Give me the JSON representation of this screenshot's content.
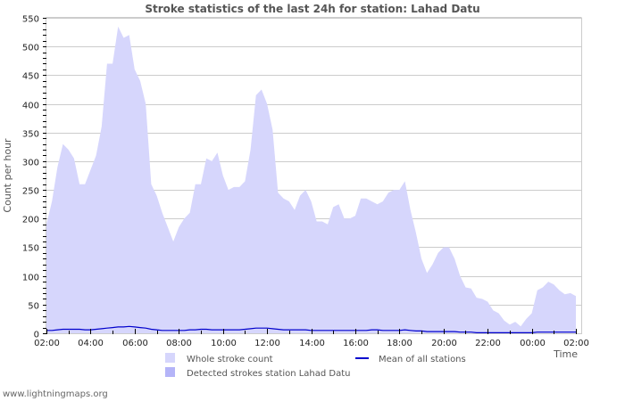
{
  "chart_data": {
    "type": "area",
    "title": "Stroke statistics of the last 24h for station: Lahad Datu",
    "xlabel": "Time",
    "ylabel": "Count per hour",
    "ylim": [
      0,
      550
    ],
    "yticks": [
      0,
      50,
      100,
      150,
      200,
      250,
      300,
      350,
      400,
      450,
      500,
      550
    ],
    "xticks": [
      "02:00",
      "04:00",
      "06:00",
      "08:00",
      "10:00",
      "12:00",
      "14:00",
      "16:00",
      "18:00",
      "20:00",
      "22:00",
      "00:00",
      "02:00"
    ],
    "grid": true,
    "legend_position": "bottom",
    "x_interval_minutes": 15,
    "series": [
      {
        "name": "Whole stroke count",
        "color": "#d6d6fc",
        "style": "area",
        "values": [
          190,
          230,
          290,
          330,
          320,
          305,
          260,
          260,
          285,
          310,
          360,
          470,
          470,
          535,
          515,
          520,
          460,
          440,
          400,
          260,
          240,
          210,
          185,
          160,
          185,
          200,
          210,
          260,
          260,
          305,
          300,
          315,
          275,
          250,
          255,
          255,
          265,
          320,
          415,
          425,
          400,
          355,
          245,
          235,
          230,
          215,
          240,
          250,
          230,
          195,
          195,
          190,
          220,
          225,
          200,
          200,
          205,
          235,
          235,
          230,
          225,
          230,
          245,
          250,
          250,
          265,
          215,
          175,
          130,
          105,
          120,
          140,
          150,
          150,
          130,
          100,
          80,
          78,
          62,
          60,
          55,
          40,
          35,
          22,
          15,
          20,
          12,
          25,
          35,
          75,
          80,
          90,
          85,
          75,
          68,
          70,
          65
        ]
      },
      {
        "name": "Detected strokes station Lahad Datu",
        "color": "#b4b4f8",
        "style": "area",
        "values": []
      },
      {
        "name": "Mean of all stations",
        "color": "#0000cc",
        "style": "line",
        "values": [
          5,
          5,
          6,
          7,
          7,
          7,
          7,
          6,
          6,
          7,
          8,
          9,
          10,
          11,
          11,
          12,
          11,
          10,
          9,
          7,
          6,
          5,
          5,
          5,
          5,
          5,
          6,
          6,
          7,
          7,
          6,
          6,
          6,
          6,
          6,
          6,
          7,
          8,
          9,
          9,
          9,
          8,
          7,
          6,
          6,
          6,
          6,
          6,
          5,
          5,
          5,
          5,
          5,
          5,
          5,
          5,
          5,
          5,
          5,
          6,
          6,
          5,
          5,
          5,
          5,
          6,
          5,
          4,
          4,
          3,
          3,
          3,
          3,
          3,
          3,
          2,
          2,
          2,
          1,
          1,
          1,
          1,
          1,
          1,
          1,
          1,
          1,
          1,
          1,
          2,
          2,
          2,
          2,
          2,
          2,
          2,
          2
        ]
      }
    ]
  },
  "legend": {
    "whole": "Whole stroke count",
    "detected": "Detected strokes station Lahad Datu",
    "mean": "Mean of all stations"
  },
  "footer": "www.lightningmaps.org"
}
